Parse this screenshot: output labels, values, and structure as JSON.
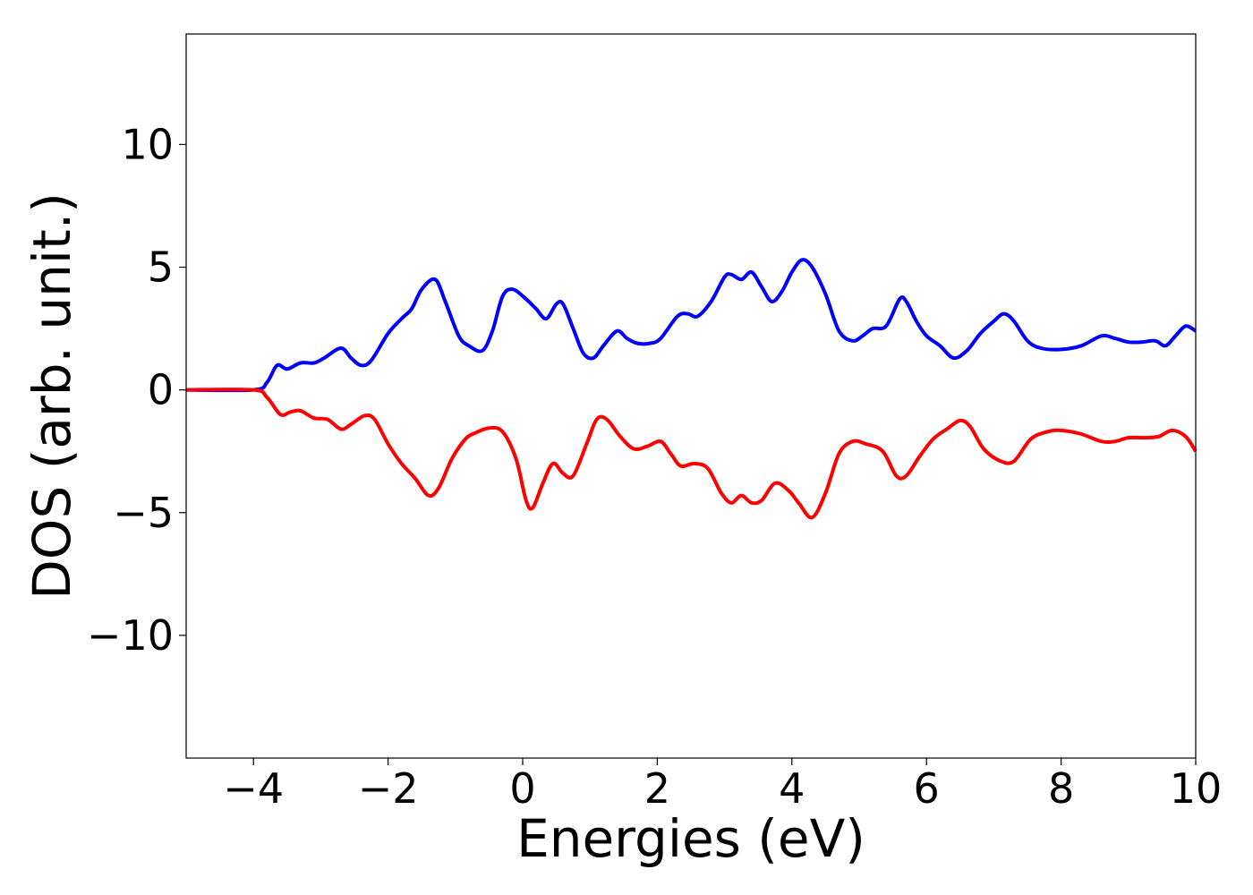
{
  "chart_data": {
    "type": "line",
    "title": "",
    "xlabel": "Energies (eV)",
    "ylabel": "DOS (arb. unit.)",
    "xlim": [
      -5,
      10
    ],
    "ylim": [
      -15,
      14.5
    ],
    "grid": false,
    "legend": "none",
    "x_ticks": [
      -4,
      -2,
      0,
      2,
      4,
      6,
      8,
      10
    ],
    "x_tick_labels": [
      "−4",
      "−2",
      "0",
      "2",
      "4",
      "6",
      "8",
      "10"
    ],
    "y_ticks": [
      10,
      5,
      0,
      -5,
      -10
    ],
    "y_tick_labels": [
      "10",
      "5",
      "0",
      "−5",
      "−10"
    ],
    "series": [
      {
        "color": "#0000ff",
        "points": [
          [
            -5.0,
            0.0
          ],
          [
            -4.0,
            0.0
          ],
          [
            -3.8,
            0.3
          ],
          [
            -3.65,
            1.0
          ],
          [
            -3.5,
            0.85
          ],
          [
            -3.3,
            1.1
          ],
          [
            -3.1,
            1.1
          ],
          [
            -2.95,
            1.3
          ],
          [
            -2.7,
            1.7
          ],
          [
            -2.55,
            1.3
          ],
          [
            -2.4,
            1.0
          ],
          [
            -2.25,
            1.2
          ],
          [
            -2.0,
            2.3
          ],
          [
            -1.8,
            2.9
          ],
          [
            -1.65,
            3.3
          ],
          [
            -1.5,
            4.1
          ],
          [
            -1.3,
            4.5
          ],
          [
            -1.15,
            3.6
          ],
          [
            -0.95,
            2.2
          ],
          [
            -0.8,
            1.8
          ],
          [
            -0.6,
            1.6
          ],
          [
            -0.45,
            2.4
          ],
          [
            -0.3,
            3.8
          ],
          [
            -0.15,
            4.1
          ],
          [
            0.05,
            3.7
          ],
          [
            0.2,
            3.3
          ],
          [
            0.35,
            2.9
          ],
          [
            0.5,
            3.5
          ],
          [
            0.6,
            3.5
          ],
          [
            0.75,
            2.5
          ],
          [
            0.9,
            1.5
          ],
          [
            1.05,
            1.3
          ],
          [
            1.2,
            1.8
          ],
          [
            1.4,
            2.4
          ],
          [
            1.55,
            2.1
          ],
          [
            1.7,
            1.9
          ],
          [
            1.9,
            1.9
          ],
          [
            2.05,
            2.1
          ],
          [
            2.3,
            3.0
          ],
          [
            2.45,
            3.1
          ],
          [
            2.6,
            3.0
          ],
          [
            2.8,
            3.6
          ],
          [
            3.0,
            4.6
          ],
          [
            3.1,
            4.7
          ],
          [
            3.25,
            4.5
          ],
          [
            3.4,
            4.8
          ],
          [
            3.55,
            4.2
          ],
          [
            3.7,
            3.6
          ],
          [
            3.85,
            4.0
          ],
          [
            4.0,
            4.8
          ],
          [
            4.15,
            5.3
          ],
          [
            4.3,
            5.0
          ],
          [
            4.5,
            3.9
          ],
          [
            4.7,
            2.4
          ],
          [
            4.9,
            2.0
          ],
          [
            5.05,
            2.2
          ],
          [
            5.2,
            2.5
          ],
          [
            5.4,
            2.6
          ],
          [
            5.6,
            3.7
          ],
          [
            5.7,
            3.6
          ],
          [
            5.85,
            2.8
          ],
          [
            6.0,
            2.2
          ],
          [
            6.2,
            1.8
          ],
          [
            6.4,
            1.3
          ],
          [
            6.6,
            1.6
          ],
          [
            6.8,
            2.3
          ],
          [
            7.0,
            2.8
          ],
          [
            7.15,
            3.1
          ],
          [
            7.3,
            2.8
          ],
          [
            7.5,
            2.0
          ],
          [
            7.7,
            1.7
          ],
          [
            8.0,
            1.65
          ],
          [
            8.3,
            1.8
          ],
          [
            8.6,
            2.2
          ],
          [
            8.8,
            2.1
          ],
          [
            9.0,
            1.95
          ],
          [
            9.2,
            1.95
          ],
          [
            9.4,
            2.0
          ],
          [
            9.55,
            1.8
          ],
          [
            9.7,
            2.2
          ],
          [
            9.85,
            2.6
          ],
          [
            10.0,
            2.4
          ]
        ]
      },
      {
        "color": "#ff0000",
        "points": [
          [
            -5.0,
            0.0
          ],
          [
            -4.0,
            0.0
          ],
          [
            -3.8,
            -0.3
          ],
          [
            -3.6,
            -1.0
          ],
          [
            -3.45,
            -0.9
          ],
          [
            -3.3,
            -0.85
          ],
          [
            -3.1,
            -1.15
          ],
          [
            -2.9,
            -1.2
          ],
          [
            -2.7,
            -1.6
          ],
          [
            -2.55,
            -1.4
          ],
          [
            -2.35,
            -1.05
          ],
          [
            -2.2,
            -1.2
          ],
          [
            -2.0,
            -2.2
          ],
          [
            -1.8,
            -3.0
          ],
          [
            -1.6,
            -3.6
          ],
          [
            -1.4,
            -4.3
          ],
          [
            -1.25,
            -4.0
          ],
          [
            -1.05,
            -2.8
          ],
          [
            -0.85,
            -2.0
          ],
          [
            -0.7,
            -1.75
          ],
          [
            -0.5,
            -1.55
          ],
          [
            -0.3,
            -1.7
          ],
          [
            -0.1,
            -2.8
          ],
          [
            0.05,
            -4.5
          ],
          [
            0.15,
            -4.8
          ],
          [
            0.3,
            -3.8
          ],
          [
            0.45,
            -3.0
          ],
          [
            0.6,
            -3.4
          ],
          [
            0.75,
            -3.5
          ],
          [
            0.95,
            -2.2
          ],
          [
            1.1,
            -1.2
          ],
          [
            1.25,
            -1.2
          ],
          [
            1.45,
            -1.9
          ],
          [
            1.65,
            -2.4
          ],
          [
            1.85,
            -2.3
          ],
          [
            2.05,
            -2.1
          ],
          [
            2.2,
            -2.6
          ],
          [
            2.35,
            -3.1
          ],
          [
            2.55,
            -3.0
          ],
          [
            2.75,
            -3.2
          ],
          [
            2.95,
            -4.2
          ],
          [
            3.1,
            -4.6
          ],
          [
            3.25,
            -4.3
          ],
          [
            3.4,
            -4.6
          ],
          [
            3.55,
            -4.5
          ],
          [
            3.75,
            -3.8
          ],
          [
            3.95,
            -4.1
          ],
          [
            4.1,
            -4.6
          ],
          [
            4.3,
            -5.2
          ],
          [
            4.5,
            -4.2
          ],
          [
            4.7,
            -2.6
          ],
          [
            4.9,
            -2.1
          ],
          [
            5.1,
            -2.2
          ],
          [
            5.35,
            -2.5
          ],
          [
            5.55,
            -3.5
          ],
          [
            5.7,
            -3.5
          ],
          [
            5.9,
            -2.7
          ],
          [
            6.1,
            -2.0
          ],
          [
            6.3,
            -1.6
          ],
          [
            6.5,
            -1.25
          ],
          [
            6.65,
            -1.5
          ],
          [
            6.85,
            -2.4
          ],
          [
            7.1,
            -2.9
          ],
          [
            7.3,
            -2.9
          ],
          [
            7.55,
            -2.0
          ],
          [
            7.8,
            -1.7
          ],
          [
            8.0,
            -1.65
          ],
          [
            8.3,
            -1.8
          ],
          [
            8.6,
            -2.1
          ],
          [
            8.8,
            -2.1
          ],
          [
            9.0,
            -1.95
          ],
          [
            9.25,
            -1.95
          ],
          [
            9.45,
            -1.9
          ],
          [
            9.65,
            -1.65
          ],
          [
            9.85,
            -1.9
          ],
          [
            10.0,
            -2.5
          ]
        ]
      }
    ]
  }
}
